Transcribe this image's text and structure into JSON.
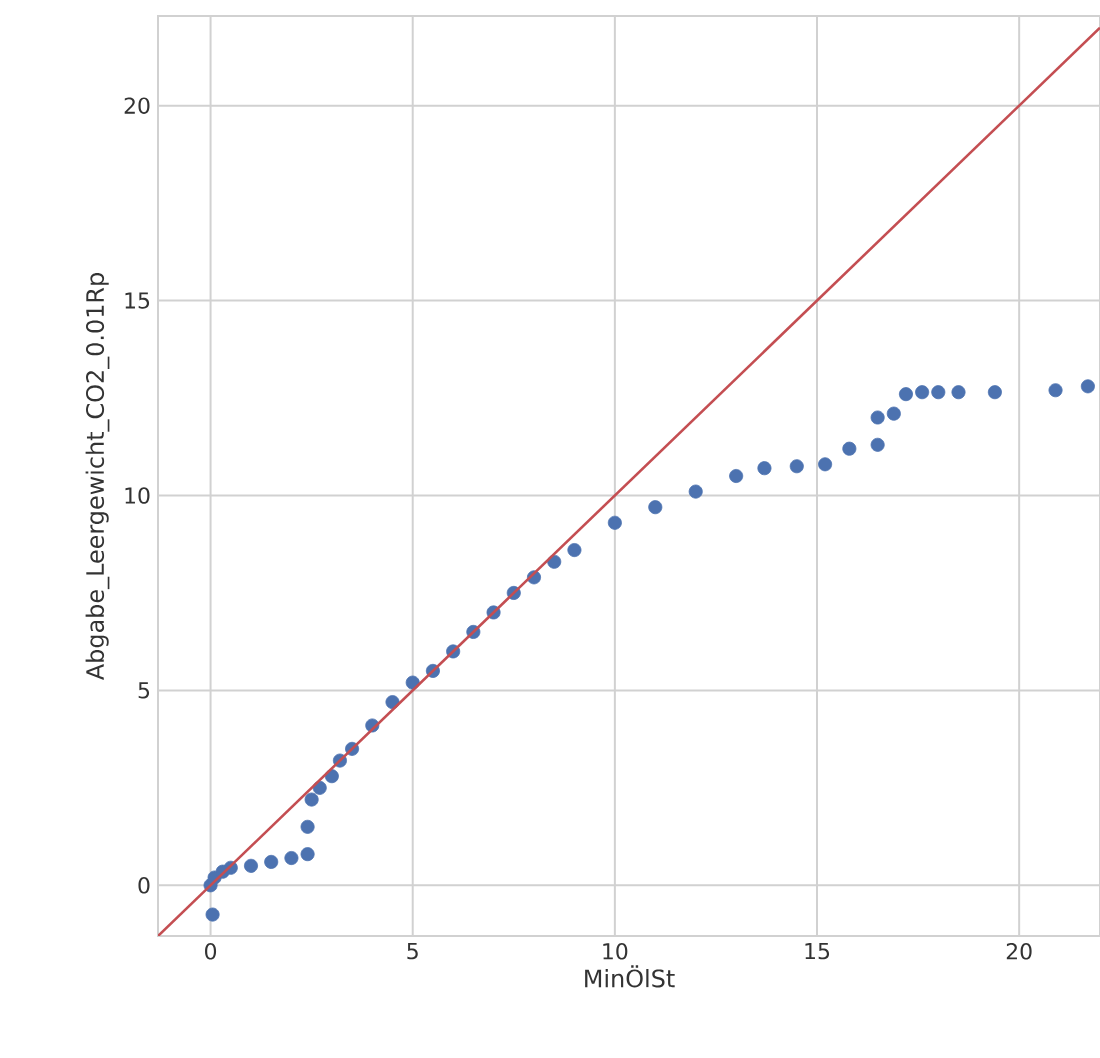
{
  "chart_data": {
    "type": "scatter",
    "xlabel": "MinÖlSt",
    "ylabel": "Abgabe_Leergewicht_CO2_0.01Rp",
    "xlim": [
      -1.3,
      22.0
    ],
    "ylim": [
      -1.3,
      22.3
    ],
    "xticks": [
      0,
      5,
      10,
      15,
      20
    ],
    "yticks": [
      0,
      5,
      10,
      15,
      20
    ],
    "grid": true,
    "marker": "circle",
    "series": [
      {
        "color": "#4c72b0",
        "x": [
          0.05,
          0,
          0.1,
          0.3,
          0.5,
          1,
          1.5,
          2,
          2.4,
          2.4,
          2.5,
          2.7,
          3,
          3.2,
          3.5,
          4,
          4.5,
          5,
          5.5,
          6,
          6.5,
          7,
          7.5,
          8,
          8.5,
          9,
          10,
          11,
          12,
          13,
          13.7,
          14.5,
          15.2,
          15.8,
          16.5,
          16.5,
          16.9,
          17.2,
          17.6,
          18,
          18.5,
          19.4,
          20.9,
          21.7
        ],
        "values": [
          -0.75,
          0,
          0.2,
          0.35,
          0.45,
          0.5,
          0.6,
          0.7,
          0.8,
          1.5,
          2.2,
          2.5,
          2.8,
          3.2,
          3.5,
          4.1,
          4.7,
          5.2,
          5.5,
          6,
          6.5,
          7,
          7.5,
          7.9,
          8.3,
          8.6,
          9.3,
          9.7,
          10.1,
          10.5,
          10.7,
          10.75,
          10.8,
          11.2,
          11.3,
          12.0,
          12.1,
          12.6,
          12.65,
          12.65,
          12.65,
          12.65,
          12.7,
          12.8
        ]
      },
      {
        "type": "line",
        "color": "#c44e52",
        "marker": "none",
        "x": [
          -1.3,
          22.0
        ],
        "values": [
          -1.3,
          22.0
        ]
      }
    ]
  }
}
